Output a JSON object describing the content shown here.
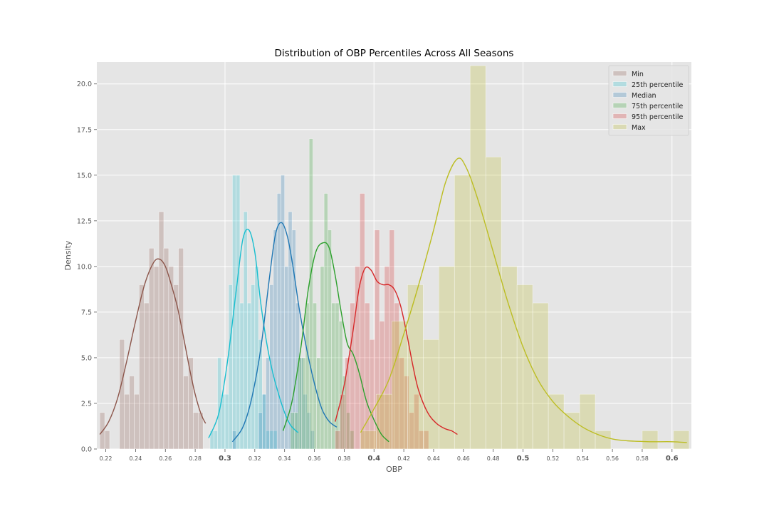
{
  "chart_data": {
    "type": "histogram",
    "title": "Distribution of OBP Percentiles Across All Seasons",
    "xlabel": "OBP",
    "ylabel": "Density",
    "xlim": [
      0.214,
      0.613
    ],
    "ylim": [
      0,
      21.2
    ],
    "grid": true,
    "legend_position": "top-right",
    "x_ticks": [
      {
        "value": 0.22,
        "label": "0.22",
        "bold": false
      },
      {
        "value": 0.24,
        "label": "0.24",
        "bold": false
      },
      {
        "value": 0.26,
        "label": "0.26",
        "bold": false
      },
      {
        "value": 0.28,
        "label": "0.28",
        "bold": false
      },
      {
        "value": 0.3,
        "label": "0.3",
        "bold": true
      },
      {
        "value": 0.32,
        "label": "0.32",
        "bold": false
      },
      {
        "value": 0.34,
        "label": "0.34",
        "bold": false
      },
      {
        "value": 0.36,
        "label": "0.36",
        "bold": false
      },
      {
        "value": 0.38,
        "label": "0.38",
        "bold": false
      },
      {
        "value": 0.4,
        "label": "0.4",
        "bold": true
      },
      {
        "value": 0.42,
        "label": "0.42",
        "bold": false
      },
      {
        "value": 0.44,
        "label": "0.44",
        "bold": false
      },
      {
        "value": 0.46,
        "label": "0.46",
        "bold": false
      },
      {
        "value": 0.48,
        "label": "0.48",
        "bold": false
      },
      {
        "value": 0.5,
        "label": "0.5",
        "bold": true
      },
      {
        "value": 0.52,
        "label": "0.52",
        "bold": false
      },
      {
        "value": 0.54,
        "label": "0.54",
        "bold": false
      },
      {
        "value": 0.56,
        "label": "0.56",
        "bold": false
      },
      {
        "value": 0.58,
        "label": "0.58",
        "bold": false
      },
      {
        "value": 0.6,
        "label": "0.6",
        "bold": true
      }
    ],
    "y_ticks": [
      {
        "value": 0,
        "label": "0.0"
      },
      {
        "value": 2.5,
        "label": "2.5"
      },
      {
        "value": 5,
        "label": "5.0"
      },
      {
        "value": 7.5,
        "label": "7.5"
      },
      {
        "value": 10,
        "label": "10.0"
      },
      {
        "value": 12.5,
        "label": "12.5"
      },
      {
        "value": 15,
        "label": "15.0"
      },
      {
        "value": 17.5,
        "label": "17.5"
      },
      {
        "value": 20,
        "label": "20.0"
      }
    ],
    "series": [
      {
        "name": "Min",
        "color": "#8c564b",
        "bin_start": 0.216,
        "bin_width": 0.0033,
        "values": [
          2,
          1,
          0,
          0,
          6,
          3,
          4,
          3,
          9,
          8,
          11,
          10,
          13,
          11,
          10,
          9,
          11,
          4,
          5,
          2,
          2
        ],
        "kde_x": [
          0.216,
          0.222,
          0.228,
          0.234,
          0.24,
          0.246,
          0.252,
          0.256,
          0.26,
          0.264,
          0.268,
          0.272,
          0.276,
          0.28,
          0.284,
          0.287
        ],
        "kde_y": [
          0.8,
          1.5,
          2.8,
          4.8,
          7.0,
          9.0,
          10.2,
          10.4,
          10.0,
          9.0,
          7.8,
          6.2,
          4.5,
          3.0,
          1.9,
          1.4
        ]
      },
      {
        "name": "25th percentile",
        "color": "#17becf",
        "bin_start": 0.29,
        "bin_width": 0.0025,
        "values": [
          1,
          1,
          5,
          3,
          3,
          9,
          15,
          15,
          8,
          13,
          8,
          9,
          10,
          6,
          3,
          1,
          1,
          1
        ],
        "kde_x": [
          0.289,
          0.296,
          0.302,
          0.308,
          0.312,
          0.316,
          0.32,
          0.324,
          0.328,
          0.332,
          0.336,
          0.34,
          0.344,
          0.349
        ],
        "kde_y": [
          0.6,
          2.0,
          5.0,
          9.0,
          11.5,
          12.0,
          10.8,
          8.0,
          5.8,
          4.2,
          3.0,
          2.0,
          1.3,
          0.9
        ]
      },
      {
        "name": "Median",
        "color": "#1f77b4",
        "bin_start": 0.305,
        "bin_width": 0.0025,
        "values": [
          1,
          0,
          0,
          0,
          0,
          0,
          0,
          2,
          3,
          5,
          9,
          12,
          14,
          15,
          10,
          13,
          12,
          8,
          5,
          3,
          2,
          1
        ],
        "kde_x": [
          0.305,
          0.312,
          0.318,
          0.324,
          0.33,
          0.334,
          0.338,
          0.342,
          0.346,
          0.35,
          0.355,
          0.36,
          0.365,
          0.37,
          0.375
        ],
        "kde_y": [
          0.4,
          1.2,
          2.8,
          5.5,
          9.5,
          11.8,
          12.4,
          11.6,
          9.8,
          7.6,
          5.4,
          3.6,
          2.2,
          1.5,
          1.2
        ]
      },
      {
        "name": "75th percentile",
        "color": "#2ca02c",
        "bin_start": 0.344,
        "bin_width": 0.0025,
        "values": [
          2,
          2,
          5,
          5,
          8,
          17,
          8,
          5,
          10,
          14,
          12,
          8,
          8,
          7,
          4,
          2,
          1
        ],
        "kde_x": [
          0.339,
          0.345,
          0.351,
          0.356,
          0.361,
          0.366,
          0.37,
          0.374,
          0.378,
          0.382,
          0.386,
          0.39,
          0.395,
          0.4,
          0.405,
          0.41
        ],
        "kde_y": [
          1.0,
          2.6,
          5.6,
          8.8,
          10.8,
          11.3,
          11.0,
          9.5,
          7.5,
          5.8,
          5.2,
          4.2,
          2.6,
          1.6,
          0.8,
          0.4
        ]
      },
      {
        "name": "95th percentile",
        "color": "#d62728",
        "bin_start": 0.374,
        "bin_width": 0.0033,
        "values": [
          1,
          3,
          5,
          8,
          10,
          14,
          8,
          6,
          12,
          7,
          10,
          12,
          8,
          5,
          4,
          2,
          3,
          1,
          1
        ],
        "kde_x": [
          0.374,
          0.38,
          0.386,
          0.39,
          0.394,
          0.398,
          0.402,
          0.406,
          0.41,
          0.414,
          0.418,
          0.422,
          0.426,
          0.43,
          0.436,
          0.442,
          0.448,
          0.452,
          0.456
        ],
        "kde_y": [
          1.5,
          3.5,
          6.5,
          8.8,
          9.9,
          9.8,
          9.2,
          9.0,
          9.0,
          8.7,
          7.8,
          6.3,
          4.6,
          3.2,
          2.0,
          1.4,
          1.1,
          1.0,
          0.8
        ]
      },
      {
        "name": "Max",
        "color": "#bcbd22",
        "bin_start": 0.391,
        "bin_width": 0.0105,
        "values": [
          1,
          3,
          7,
          9,
          6,
          10,
          15,
          21,
          16,
          10,
          9,
          8,
          3,
          2,
          3,
          1,
          0,
          0,
          1,
          0,
          1
        ],
        "kde_x": [
          0.391,
          0.4,
          0.41,
          0.42,
          0.43,
          0.44,
          0.448,
          0.456,
          0.462,
          0.47,
          0.48,
          0.49,
          0.5,
          0.51,
          0.52,
          0.53,
          0.54,
          0.55,
          0.56,
          0.57,
          0.585,
          0.6,
          0.61
        ],
        "kde_y": [
          0.9,
          2.2,
          3.8,
          6.3,
          9.0,
          12.0,
          14.6,
          15.9,
          15.4,
          13.6,
          10.8,
          8.0,
          5.6,
          3.8,
          2.6,
          1.8,
          1.2,
          0.8,
          0.55,
          0.45,
          0.4,
          0.4,
          0.35
        ]
      }
    ]
  }
}
